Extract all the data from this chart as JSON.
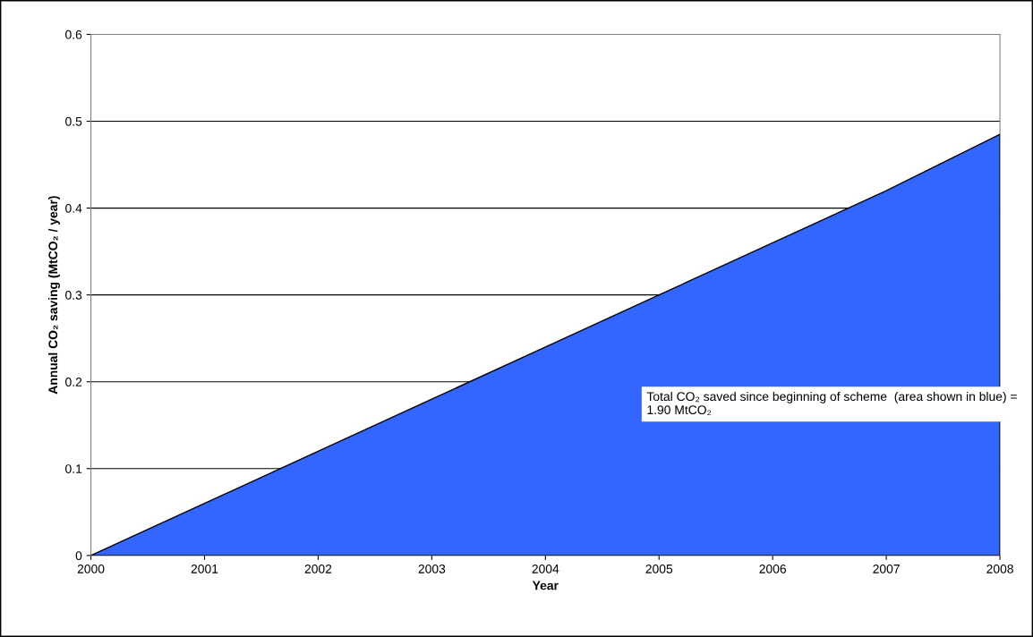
{
  "chart_data": {
    "type": "area",
    "xlabel": "Year",
    "ylabel": "Annual CO₂ saving (MtCO₂ / year)",
    "x": [
      2000,
      2001,
      2002,
      2003,
      2004,
      2005,
      2006,
      2007,
      2008
    ],
    "series": [
      {
        "color": "#3366ff",
        "values": [
          0,
          0.06,
          0.12,
          0.18,
          0.24,
          0.3,
          0.36,
          0.42,
          0.485
        ]
      }
    ],
    "xlim": [
      2000,
      2008
    ],
    "xticks": [
      2000,
      2001,
      2002,
      2003,
      2004,
      2005,
      2006,
      2007,
      2008
    ],
    "ylim": [
      0,
      0.6
    ],
    "yticks": [
      {
        "value": 0,
        "label": "0"
      },
      0.1,
      0.2,
      0.3,
      0.4,
      0.5,
      0.6
    ],
    "grid": "y",
    "annotations": [
      "Total CO₂ saved since beginning of scheme  (area shown in blue) = 1.90 MtCO₂"
    ]
  }
}
